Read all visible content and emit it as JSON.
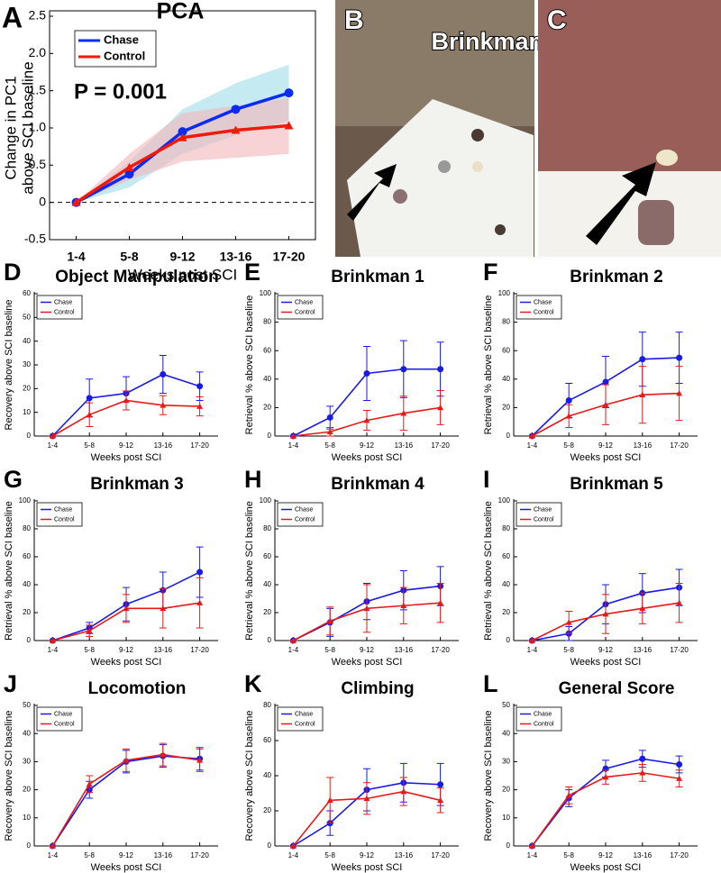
{
  "images": [
    {
      "panel": "B",
      "caption": "Brinkman board"
    },
    {
      "panel": "C"
    }
  ],
  "chart_data": [
    {
      "type": "line",
      "panel": "A",
      "title": "PCA",
      "ylabel": [
        "Change in PC1",
        "above SCI baseline"
      ],
      "xlabel": "Weeks post SCI",
      "annotation": "P = 0.001",
      "categories": [
        "1-4",
        "5-8",
        "9-12",
        "13-16",
        "17-20"
      ],
      "ylim": [
        -0.5,
        2.5
      ],
      "yticks": [
        -0.5,
        0,
        0.5,
        {
          "value": 1,
          "label": "1.0"
        },
        1.5,
        {
          "value": 2,
          "label": "2.0"
        },
        2.5
      ],
      "legend": "upper left",
      "series": [
        {
          "name": "Chase",
          "color": "#0a2cf0",
          "values": [
            0,
            0.38,
            0.95,
            1.25,
            1.47
          ],
          "lower": [
            0,
            0.2,
            0.65,
            0.9,
            1.1
          ],
          "upper": [
            0,
            0.55,
            1.25,
            1.6,
            1.85
          ],
          "band_color": "#9fdcea"
        },
        {
          "name": "Control",
          "color": "#f01a0a",
          "values": [
            0,
            0.47,
            0.87,
            0.97,
            1.03
          ],
          "lower": [
            0,
            0.3,
            0.55,
            0.6,
            0.65
          ],
          "upper": [
            0,
            0.65,
            1.2,
            1.3,
            1.4
          ],
          "band_color": "#f4b5bb"
        }
      ]
    },
    {
      "type": "line",
      "panel": "D",
      "title": "Object Manipulation",
      "ylabel": "Recovery above SCI baseline",
      "xlabel": "Weeks post SCI",
      "categories": [
        "1-4",
        "5-8",
        "9-12",
        "13-16",
        "17-20"
      ],
      "ylim": [
        0,
        60
      ],
      "yticks": [
        0,
        10,
        20,
        30,
        40,
        50,
        60
      ],
      "legend": "upper left",
      "series": [
        {
          "name": "Chase",
          "color": "#1a1ae6",
          "values": [
            0,
            16,
            18,
            26,
            21
          ],
          "errors": [
            0,
            8,
            7,
            8,
            6
          ]
        },
        {
          "name": "Control",
          "color": "#e61a1a",
          "values": [
            0,
            9,
            15,
            13,
            12.5
          ],
          "errors": [
            0,
            5,
            4,
            4,
            4
          ]
        }
      ]
    },
    {
      "type": "line",
      "panel": "E",
      "title": "Brinkman 1",
      "ylabel": "Retrieval % above SCI baseline",
      "xlabel": "Weeks post SCI",
      "categories": [
        "1-4",
        "5-8",
        "9-12",
        "13-16",
        "17-20"
      ],
      "ylim": [
        0,
        100
      ],
      "yticks": [
        0,
        20,
        40,
        60,
        80,
        100
      ],
      "legend": "upper left",
      "series": [
        {
          "name": "Chase",
          "color": "#1a1ae6",
          "values": [
            0,
            13,
            44,
            47,
            47
          ],
          "errors": [
            0,
            8,
            19,
            20,
            19
          ]
        },
        {
          "name": "Control",
          "color": "#e61a1a",
          "values": [
            0,
            3,
            11,
            16,
            20
          ],
          "errors": [
            0,
            3,
            7,
            12,
            12
          ]
        }
      ]
    },
    {
      "type": "line",
      "panel": "F",
      "title": "Brinkman 2",
      "ylabel": "Retrieval % above SCI baseline",
      "xlabel": "Weeks post SCI",
      "categories": [
        "1-4",
        "5-8",
        "9-12",
        "13-16",
        "17-20"
      ],
      "ylim": [
        0,
        100
      ],
      "yticks": [
        0,
        20,
        40,
        60,
        80,
        100
      ],
      "legend": "upper left",
      "series": [
        {
          "name": "Chase",
          "color": "#1a1ae6",
          "values": [
            0,
            25,
            38,
            54,
            55
          ],
          "errors": [
            0,
            12,
            18,
            19,
            18
          ]
        },
        {
          "name": "Control",
          "color": "#e61a1a",
          "values": [
            0,
            14,
            22,
            29,
            30
          ],
          "errors": [
            0,
            8,
            14,
            20,
            19
          ]
        }
      ]
    },
    {
      "type": "line",
      "panel": "G",
      "title": "Brinkman 3",
      "ylabel": "Retrieval % above SCI baseline",
      "xlabel": "Weeks post SCI",
      "categories": [
        "1-4",
        "5-8",
        "9-12",
        "13-16",
        "17-20"
      ],
      "ylim": [
        0,
        100
      ],
      "yticks": [
        0,
        20,
        40,
        60,
        80,
        100
      ],
      "legend": "upper left",
      "series": [
        {
          "name": "Chase",
          "color": "#1a1ae6",
          "values": [
            0,
            9,
            26,
            36,
            49
          ],
          "errors": [
            0,
            4,
            12,
            13,
            18
          ]
        },
        {
          "name": "Control",
          "color": "#e61a1a",
          "values": [
            0,
            7,
            23,
            23,
            27
          ],
          "errors": [
            0,
            4,
            10,
            14,
            18
          ]
        }
      ]
    },
    {
      "type": "line",
      "panel": "H",
      "title": "Brinkman 4",
      "ylabel": "Retrieval % above SCI baseline",
      "xlabel": "Weeks post SCI",
      "categories": [
        "1-4",
        "5-8",
        "9-12",
        "13-16",
        "17-20"
      ],
      "ylim": [
        0,
        100
      ],
      "yticks": [
        0,
        20,
        40,
        60,
        80,
        100
      ],
      "legend": "upper left",
      "series": [
        {
          "name": "Chase",
          "color": "#1a1ae6",
          "values": [
            0,
            13,
            28,
            36,
            39
          ],
          "errors": [
            0,
            10,
            13,
            14,
            14
          ]
        },
        {
          "name": "Control",
          "color": "#e61a1a",
          "values": [
            0,
            14,
            23,
            25,
            27
          ],
          "errors": [
            0,
            10,
            17,
            13,
            14
          ]
        }
      ]
    },
    {
      "type": "line",
      "panel": "I",
      "title": "Brinkman 5",
      "ylabel": "Retrieval % above SCI baseline",
      "xlabel": "Weeks post SCI",
      "categories": [
        "1-4",
        "5-8",
        "9-12",
        "13-16",
        "17-20"
      ],
      "ylim": [
        0,
        100
      ],
      "yticks": [
        0,
        20,
        40,
        60,
        80,
        100
      ],
      "legend": "upper left",
      "series": [
        {
          "name": "Chase",
          "color": "#1a1ae6",
          "values": [
            0,
            5,
            26,
            34,
            38
          ],
          "errors": [
            0,
            5,
            14,
            14,
            13
          ]
        },
        {
          "name": "Control",
          "color": "#e61a1a",
          "values": [
            0,
            13,
            19,
            23,
            27
          ],
          "errors": [
            0,
            8,
            14,
            11,
            14
          ]
        }
      ]
    },
    {
      "type": "line",
      "panel": "J",
      "title": "Locomotion",
      "ylabel": "Recovery above SCI baseline",
      "xlabel": "Weeks post SCI",
      "categories": [
        "1-4",
        "5-8",
        "9-12",
        "13-16",
        "17-20"
      ],
      "ylim": [
        0,
        50
      ],
      "yticks": [
        0,
        10,
        20,
        30,
        40,
        50
      ],
      "legend": "upper left",
      "series": [
        {
          "name": "Chase",
          "color": "#1a1ae6",
          "values": [
            0,
            20,
            30,
            32,
            31
          ],
          "errors": [
            0,
            3,
            4,
            4,
            4
          ]
        },
        {
          "name": "Control",
          "color": "#e61a1a",
          "values": [
            0,
            22,
            30.5,
            32.5,
            30.5
          ],
          "errors": [
            0,
            3,
            4,
            4,
            4
          ]
        }
      ]
    },
    {
      "type": "line",
      "panel": "K",
      "title": "Climbing",
      "ylabel": "Recovery above SCI baseline",
      "xlabel": "Weeks post SCI",
      "categories": [
        "1-4",
        "5-8",
        "9-12",
        "13-16",
        "17-20"
      ],
      "ylim": [
        0,
        80
      ],
      "yticks": [
        0,
        20,
        40,
        60,
        80
      ],
      "legend": "upper left",
      "series": [
        {
          "name": "Chase",
          "color": "#1a1ae6",
          "values": [
            0,
            13,
            32,
            36,
            35
          ],
          "errors": [
            0,
            7,
            12,
            11,
            12
          ]
        },
        {
          "name": "Control",
          "color": "#e61a1a",
          "values": [
            0,
            26,
            27,
            31,
            26
          ],
          "errors": [
            0,
            13,
            9,
            8,
            7
          ]
        }
      ]
    },
    {
      "type": "line",
      "panel": "L",
      "title": "General Score",
      "ylabel": "Recovery above SCI baseline",
      "xlabel": "Weeks post SCI",
      "categories": [
        "1-4",
        "5-8",
        "9-12",
        "13-16",
        "17-20"
      ],
      "ylim": [
        0,
        50
      ],
      "yticks": [
        0,
        10,
        20,
        30,
        40,
        50
      ],
      "legend": "upper left",
      "series": [
        {
          "name": "Chase",
          "color": "#1a1ae6",
          "values": [
            0,
            17,
            27.5,
            31,
            29
          ],
          "errors": [
            0,
            3,
            3,
            3,
            3
          ]
        },
        {
          "name": "Control",
          "color": "#e61a1a",
          "values": [
            0,
            18,
            24.5,
            26,
            24
          ],
          "errors": [
            0,
            3,
            2.5,
            3,
            3
          ]
        }
      ]
    }
  ]
}
